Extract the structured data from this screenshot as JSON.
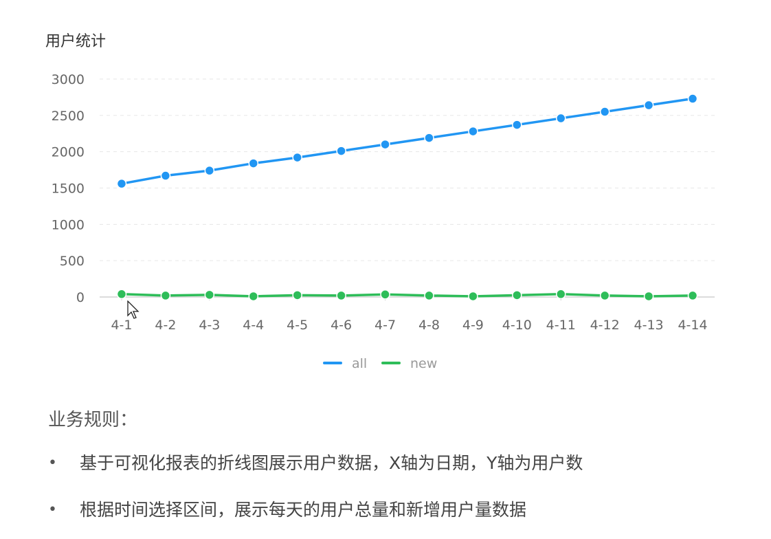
{
  "chart_title": "用户统计",
  "chart_data": {
    "type": "line",
    "title": "用户统计",
    "categories": [
      "4-1",
      "4-2",
      "4-3",
      "4-4",
      "4-5",
      "4-6",
      "4-7",
      "4-8",
      "4-9",
      "4-10",
      "4-11",
      "4-12",
      "4-13",
      "4-14"
    ],
    "series": [
      {
        "name": "all",
        "color": "#2196f3",
        "values": [
          1560,
          1670,
          1740,
          1840,
          1920,
          2010,
          2100,
          2190,
          2280,
          2370,
          2460,
          2550,
          2640,
          2730
        ]
      },
      {
        "name": "new",
        "color": "#2ebd59",
        "values": [
          40,
          20,
          30,
          10,
          25,
          20,
          35,
          20,
          10,
          25,
          40,
          20,
          10,
          20
        ]
      }
    ],
    "ylim": [
      0,
      3000
    ],
    "yticks": [
      0,
      500,
      1000,
      1500,
      2000,
      2500,
      3000
    ],
    "grid": true,
    "legend_position": "bottom-center"
  },
  "rules": {
    "heading": "业务规则：",
    "bullet": "•",
    "items": [
      "基于可视化报表的折线图展示用户数据，X轴为日期，Y轴为用户数",
      "根据时间选择区间，展示每天的用户总量和新增用户量数据"
    ]
  }
}
